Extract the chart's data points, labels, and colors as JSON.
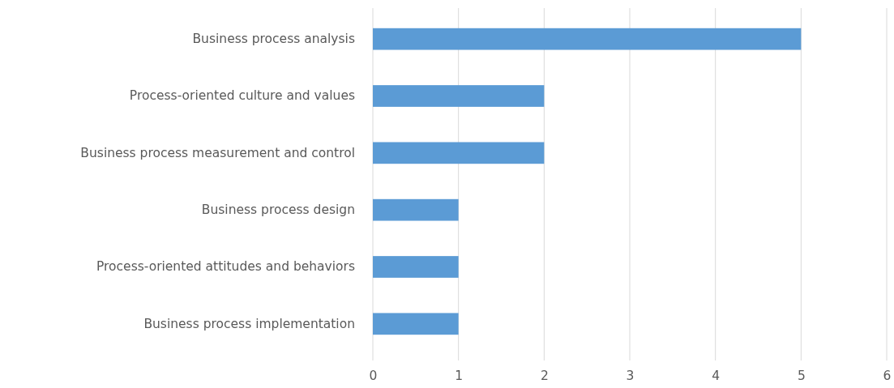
{
  "chart_data": {
    "type": "bar",
    "orientation": "horizontal",
    "categories": [
      "Business process analysis",
      "Process-oriented culture and values",
      "Business process measurement and control",
      "Business process design",
      "Process-oriented attitudes and behaviors",
      "Business process implementation"
    ],
    "values": [
      5,
      2,
      2,
      1,
      1,
      1
    ],
    "color": "#5b9bd5",
    "xlim": [
      0,
      6
    ],
    "xticks": [
      0,
      1,
      2,
      3,
      4,
      5,
      6
    ],
    "grid": "x"
  }
}
